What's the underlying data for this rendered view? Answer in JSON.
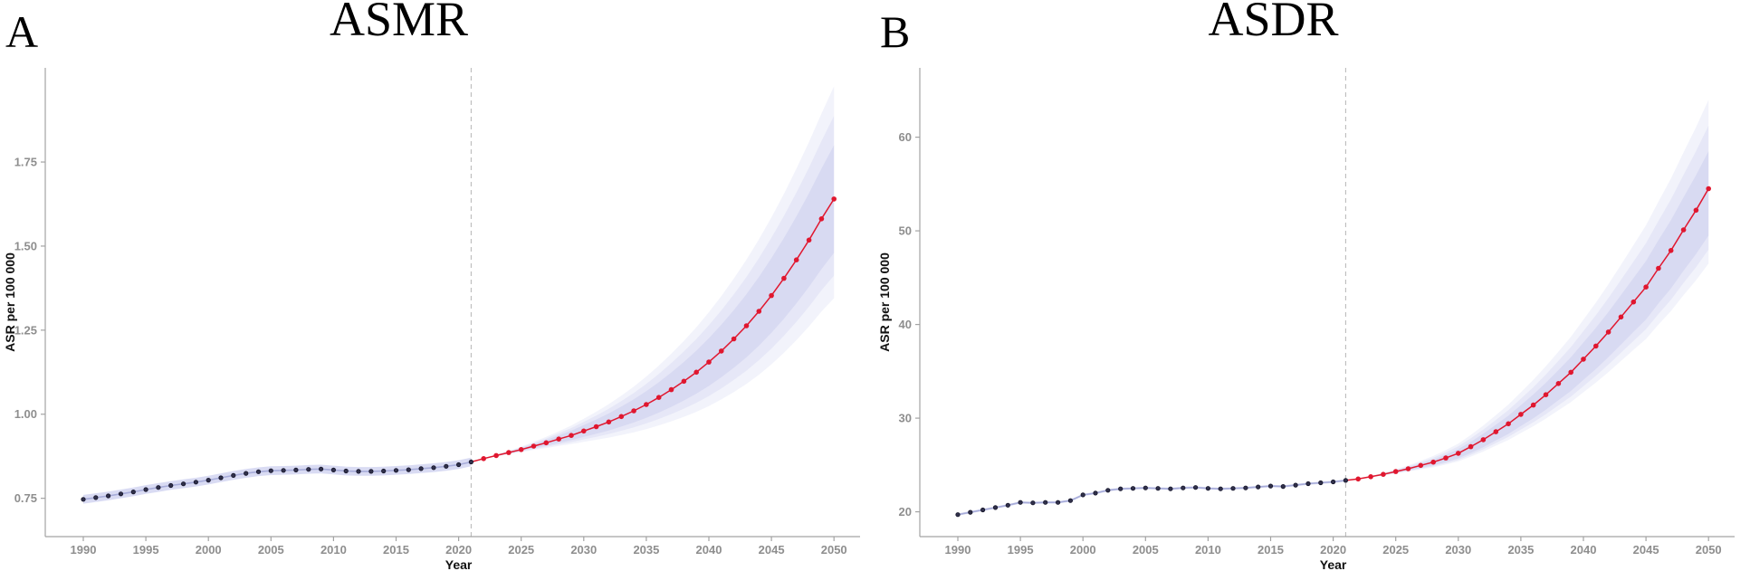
{
  "chart_data": [
    {
      "type": "line",
      "panel_label": "A",
      "title": "ASMR",
      "xlabel": "Year",
      "ylabel": "ASR per 100 000",
      "x_ticks": [
        1990,
        1995,
        2000,
        2005,
        2010,
        2015,
        2020,
        2025,
        2030,
        2035,
        2040,
        2045,
        2050
      ],
      "y_ticks": [
        0.75,
        1.0,
        1.25,
        1.5,
        1.75
      ],
      "y_tick_labels": [
        "0.75",
        "1.00",
        "1.25",
        "1.50",
        "1.75"
      ],
      "ylim": [
        0.636,
        2.03
      ],
      "forecast_start_year": 2021,
      "grid": "off",
      "legend_position": "none",
      "series": [
        {
          "name": "observed",
          "years": [
            1990,
            1991,
            1992,
            1993,
            1994,
            1995,
            1996,
            1997,
            1998,
            1999,
            2000,
            2001,
            2002,
            2003,
            2004,
            2005,
            2006,
            2007,
            2008,
            2009,
            2010,
            2011,
            2012,
            2013,
            2014,
            2015,
            2016,
            2017,
            2018,
            2019,
            2020,
            2021
          ],
          "values": [
            0.747,
            0.752,
            0.757,
            0.763,
            0.769,
            0.776,
            0.782,
            0.788,
            0.793,
            0.798,
            0.804,
            0.811,
            0.818,
            0.824,
            0.829,
            0.832,
            0.833,
            0.834,
            0.836,
            0.837,
            0.834,
            0.831,
            0.83,
            0.83,
            0.831,
            0.833,
            0.835,
            0.838,
            0.841,
            0.845,
            0.85,
            0.858
          ]
        },
        {
          "name": "projected",
          "years": [
            2022,
            2023,
            2024,
            2025,
            2026,
            2027,
            2028,
            2029,
            2030,
            2031,
            2032,
            2033,
            2034,
            2035,
            2036,
            2037,
            2038,
            2039,
            2040,
            2041,
            2042,
            2043,
            2044,
            2045,
            2046,
            2047,
            2048,
            2049,
            2050
          ],
          "values": [
            0.868,
            0.877,
            0.886,
            0.895,
            0.905,
            0.915,
            0.926,
            0.937,
            0.95,
            0.963,
            0.977,
            0.993,
            1.01,
            1.029,
            1.05,
            1.073,
            1.098,
            1.125,
            1.155,
            1.188,
            1.224,
            1.263,
            1.306,
            1.353,
            1.404,
            1.459,
            1.518,
            1.581,
            1.64
          ]
        }
      ],
      "observed_band_halfwidth": 0.013,
      "ci_2050": {
        "outer_upper": 1.975,
        "outer_lower": 1.345,
        "inner_upper": 1.8,
        "inner_lower": 1.48
      }
    },
    {
      "type": "line",
      "panel_label": "B",
      "title": "ASDR",
      "xlabel": "Year",
      "ylabel": "ASR per 100 000",
      "x_ticks": [
        1990,
        1995,
        2000,
        2005,
        2010,
        2015,
        2020,
        2025,
        2030,
        2035,
        2040,
        2045,
        2050
      ],
      "y_ticks": [
        20,
        30,
        40,
        50,
        60
      ],
      "y_tick_labels": [
        "20",
        "30",
        "40",
        "50",
        "60"
      ],
      "ylim": [
        17.35,
        67.4
      ],
      "forecast_start_year": 2021,
      "grid": "off",
      "legend_position": "none",
      "series": [
        {
          "name": "observed",
          "years": [
            1990,
            1991,
            1992,
            1993,
            1994,
            1995,
            1996,
            1997,
            1998,
            1999,
            2000,
            2001,
            2002,
            2003,
            2004,
            2005,
            2006,
            2007,
            2008,
            2009,
            2010,
            2011,
            2012,
            2013,
            2014,
            2015,
            2016,
            2017,
            2018,
            2019,
            2020,
            2021
          ],
          "values": [
            19.7,
            19.95,
            20.2,
            20.45,
            20.7,
            21.0,
            20.95,
            21.0,
            21.0,
            21.2,
            21.8,
            22.0,
            22.3,
            22.45,
            22.5,
            22.55,
            22.5,
            22.45,
            22.55,
            22.6,
            22.5,
            22.45,
            22.5,
            22.55,
            22.65,
            22.75,
            22.7,
            22.85,
            23.0,
            23.1,
            23.2,
            23.35
          ]
        },
        {
          "name": "projected",
          "years": [
            2022,
            2023,
            2024,
            2025,
            2026,
            2027,
            2028,
            2029,
            2030,
            2031,
            2032,
            2033,
            2034,
            2035,
            2036,
            2037,
            2038,
            2039,
            2040,
            2041,
            2042,
            2043,
            2044,
            2045,
            2046,
            2047,
            2048,
            2049,
            2050
          ],
          "values": [
            23.5,
            23.75,
            24.0,
            24.3,
            24.6,
            24.95,
            25.3,
            25.75,
            26.25,
            26.95,
            27.7,
            28.55,
            29.4,
            30.4,
            31.4,
            32.5,
            33.7,
            34.9,
            36.3,
            37.7,
            39.2,
            40.8,
            42.4,
            44.0,
            46.0,
            47.9,
            50.1,
            52.2,
            54.5
          ]
        }
      ],
      "observed_band_halfwidth": 0.12,
      "ci_2050": {
        "outer_upper": 64.0,
        "outer_lower": 46.5,
        "inner_upper": 58.5,
        "inner_lower": 49.5
      }
    }
  ],
  "colors": {
    "projected_line": "#e0172f",
    "projected_point": "#e0172f",
    "observed_point_fill": "#30304a",
    "observed_point_stroke": "#15152a",
    "observed_line": "#a7acd9",
    "ci_band": "#b9bee9",
    "observed_band": "#b9bee9",
    "axis_line": "#a3a3a3",
    "tick_label": "#8e8e8e",
    "dashed_guide": "#bdbdbd",
    "axis_title": "#111111"
  }
}
